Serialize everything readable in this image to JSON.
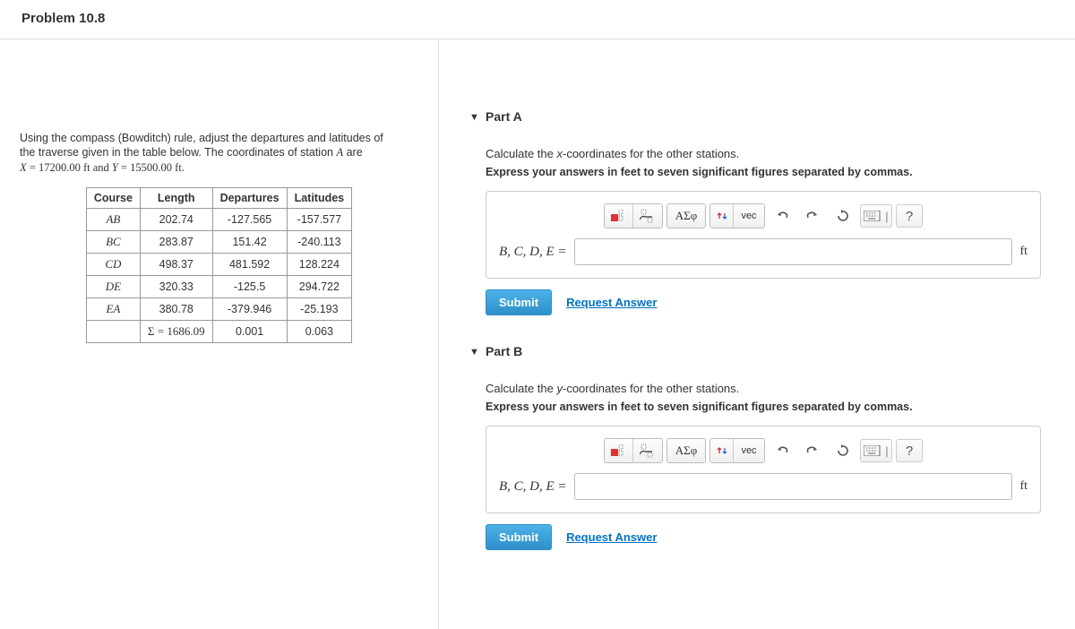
{
  "header": {
    "title": "Problem 10.8"
  },
  "problem": {
    "intro_line1": "Using the compass (Bowditch) rule, adjust the departures and latitudes of",
    "intro_line2_a": "the traverse given in the table below. The coordinates of station ",
    "intro_line2_b": " are",
    "station_letter": "A",
    "coord_line_prefix": "X = ",
    "coord_X": "17200.00 ft",
    "coord_and": " and ",
    "coord_Y_prefix": "Y = ",
    "coord_Y": "15500.00 ft",
    "coord_suffix": "."
  },
  "table": {
    "columns": [
      "Course",
      "Length",
      "Departures",
      "Latitudes"
    ],
    "rows": [
      {
        "course": "AB",
        "length": "202.74",
        "dep": "-127.565",
        "lat": "-157.577"
      },
      {
        "course": "BC",
        "length": "283.87",
        "dep": "151.42",
        "lat": "-240.113"
      },
      {
        "course": "CD",
        "length": "498.37",
        "dep": "481.592",
        "lat": "128.224"
      },
      {
        "course": "DE",
        "length": "320.33",
        "dep": "-125.5",
        "lat": "294.722"
      },
      {
        "course": "EA",
        "length": "380.78",
        "dep": "-379.946",
        "lat": "-25.193"
      }
    ],
    "sum_row": {
      "label": "Σ = 1686.09",
      "dep": "0.001",
      "lat": "0.063"
    }
  },
  "parts": {
    "a": {
      "header": "Part A",
      "desc_pre": "Calculate the ",
      "desc_var": "x",
      "desc_post": "-coordinates for the other stations.",
      "hint": "Express your answers in feet to seven significant figures separated by commas.",
      "answer_label": "B, C, D, E =",
      "unit": "ft",
      "submit": "Submit",
      "request": "Request Answer"
    },
    "b": {
      "header": "Part B",
      "desc_pre": "Calculate the ",
      "desc_var": "y",
      "desc_post": "-coordinates for the other stations.",
      "hint": "Express your answers in feet to seven significant figures separated by commas.",
      "answer_label": "B, C, D, E =",
      "unit": "ft",
      "submit": "Submit",
      "request": "Request Answer"
    }
  },
  "toolbar": {
    "greek": "ΑΣφ",
    "vec": "vec",
    "help": "?"
  },
  "colors": {
    "border": "#cccccc",
    "link": "#0072c6",
    "submit_bg": "#36a0da"
  }
}
